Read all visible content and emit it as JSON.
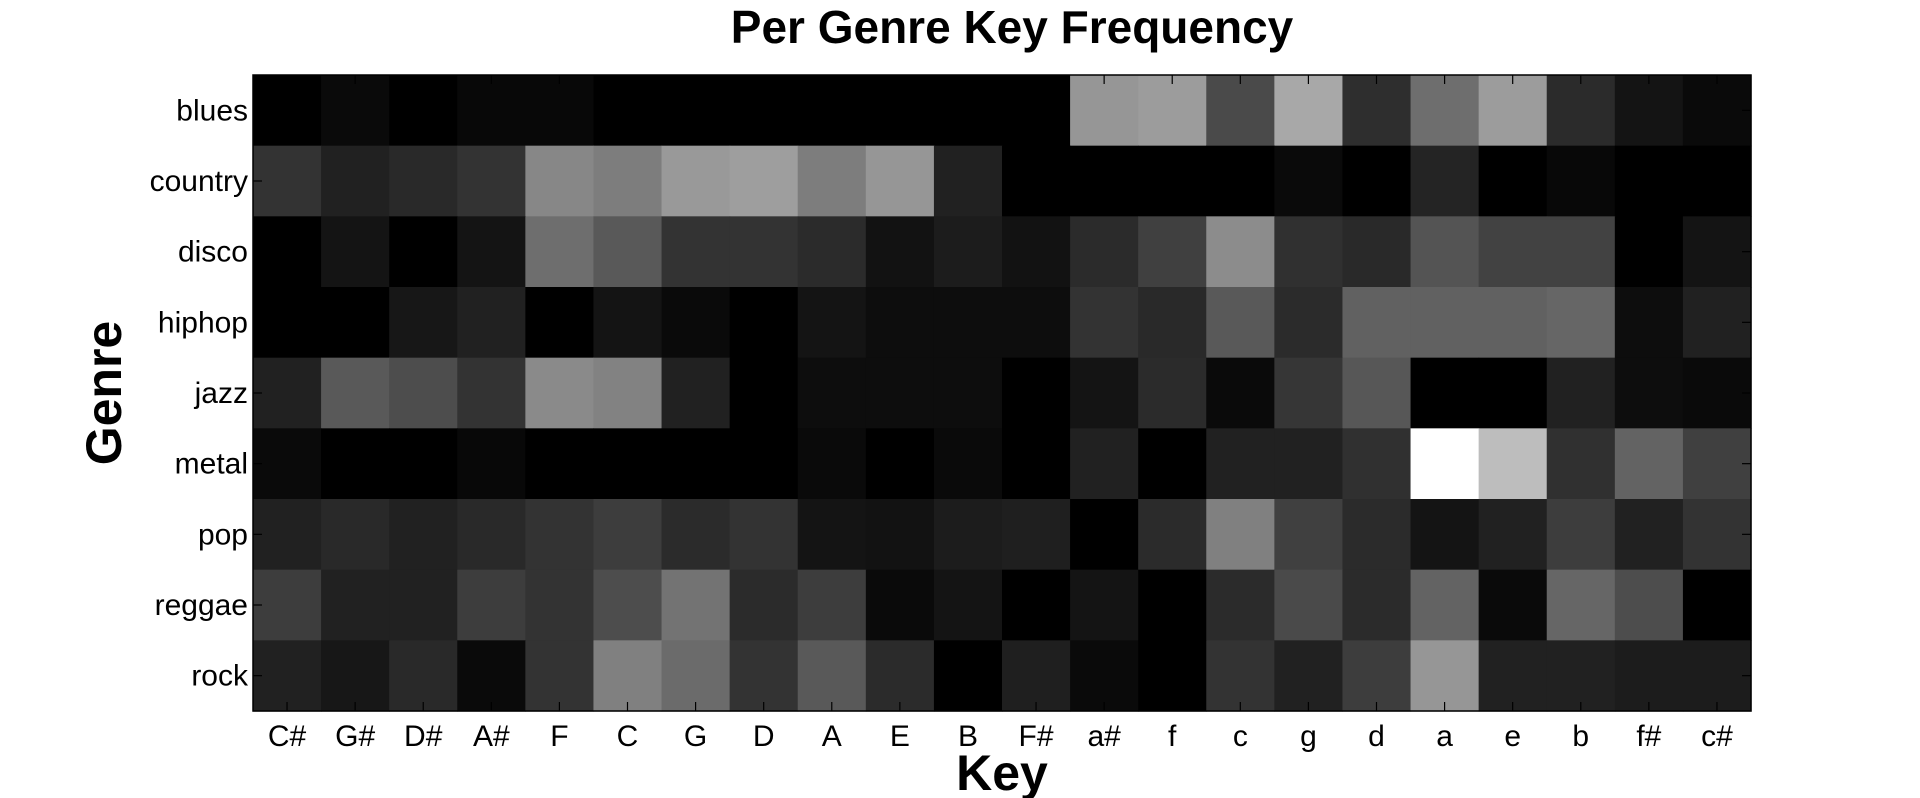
{
  "chart_data": {
    "type": "heatmap",
    "title": "Per Genre Key Frequency",
    "xlabel": "Key",
    "ylabel": "Genre",
    "colormap": "gray",
    "colors": {
      "low": "#000000",
      "high": "#ffffff",
      "axis": "#000000",
      "background": "#ffffff"
    },
    "grid": false,
    "x": [
      "C#",
      "G#",
      "D#",
      "A#",
      "F",
      "C",
      "G",
      "D",
      "A",
      "E",
      "B",
      "F#",
      "a#",
      "f",
      "c",
      "g",
      "d",
      "a",
      "e",
      "b",
      "f#",
      "c#"
    ],
    "y": [
      "blues",
      "country",
      "disco",
      "hiphop",
      "jazz",
      "metal",
      "pop",
      "reggae",
      "rock"
    ],
    "values": [
      [
        0.0,
        0.04,
        0.0,
        0.03,
        0.03,
        0.0,
        0.0,
        0.0,
        0.0,
        0.0,
        0.0,
        0.0,
        0.59,
        0.61,
        0.29,
        0.66,
        0.18,
        0.43,
        0.61,
        0.17,
        0.08,
        0.04
      ],
      [
        0.2,
        0.13,
        0.16,
        0.2,
        0.53,
        0.49,
        0.6,
        0.62,
        0.49,
        0.59,
        0.13,
        0.0,
        0.0,
        0.0,
        0.0,
        0.04,
        0.0,
        0.14,
        0.0,
        0.03,
        0.0,
        0.0
      ],
      [
        0.0,
        0.08,
        0.0,
        0.08,
        0.43,
        0.35,
        0.2,
        0.2,
        0.17,
        0.07,
        0.11,
        0.07,
        0.17,
        0.25,
        0.55,
        0.19,
        0.16,
        0.33,
        0.26,
        0.26,
        0.0,
        0.08
      ],
      [
        0.0,
        0.0,
        0.09,
        0.13,
        0.0,
        0.08,
        0.04,
        0.0,
        0.08,
        0.05,
        0.05,
        0.05,
        0.2,
        0.16,
        0.35,
        0.17,
        0.38,
        0.38,
        0.38,
        0.4,
        0.05,
        0.13
      ],
      [
        0.13,
        0.35,
        0.3,
        0.2,
        0.54,
        0.51,
        0.13,
        0.0,
        0.05,
        0.05,
        0.05,
        0.0,
        0.08,
        0.17,
        0.04,
        0.21,
        0.34,
        0.0,
        0.0,
        0.13,
        0.05,
        0.04
      ],
      [
        0.04,
        0.0,
        0.0,
        0.03,
        0.0,
        0.0,
        0.0,
        0.0,
        0.04,
        0.0,
        0.04,
        0.0,
        0.13,
        0.0,
        0.13,
        0.13,
        0.19,
        1.0,
        0.74,
        0.19,
        0.39,
        0.25
      ],
      [
        0.13,
        0.16,
        0.13,
        0.16,
        0.2,
        0.24,
        0.17,
        0.2,
        0.08,
        0.07,
        0.11,
        0.12,
        0.0,
        0.17,
        0.5,
        0.25,
        0.17,
        0.08,
        0.13,
        0.24,
        0.13,
        0.2
      ],
      [
        0.24,
        0.13,
        0.13,
        0.24,
        0.2,
        0.3,
        0.45,
        0.17,
        0.24,
        0.04,
        0.08,
        0.0,
        0.08,
        0.0,
        0.17,
        0.29,
        0.17,
        0.39,
        0.04,
        0.4,
        0.3,
        0.0
      ],
      [
        0.13,
        0.09,
        0.16,
        0.04,
        0.2,
        0.5,
        0.42,
        0.2,
        0.35,
        0.17,
        0.0,
        0.12,
        0.04,
        0.0,
        0.2,
        0.13,
        0.24,
        0.59,
        0.13,
        0.13,
        0.11,
        0.11
      ]
    ]
  }
}
